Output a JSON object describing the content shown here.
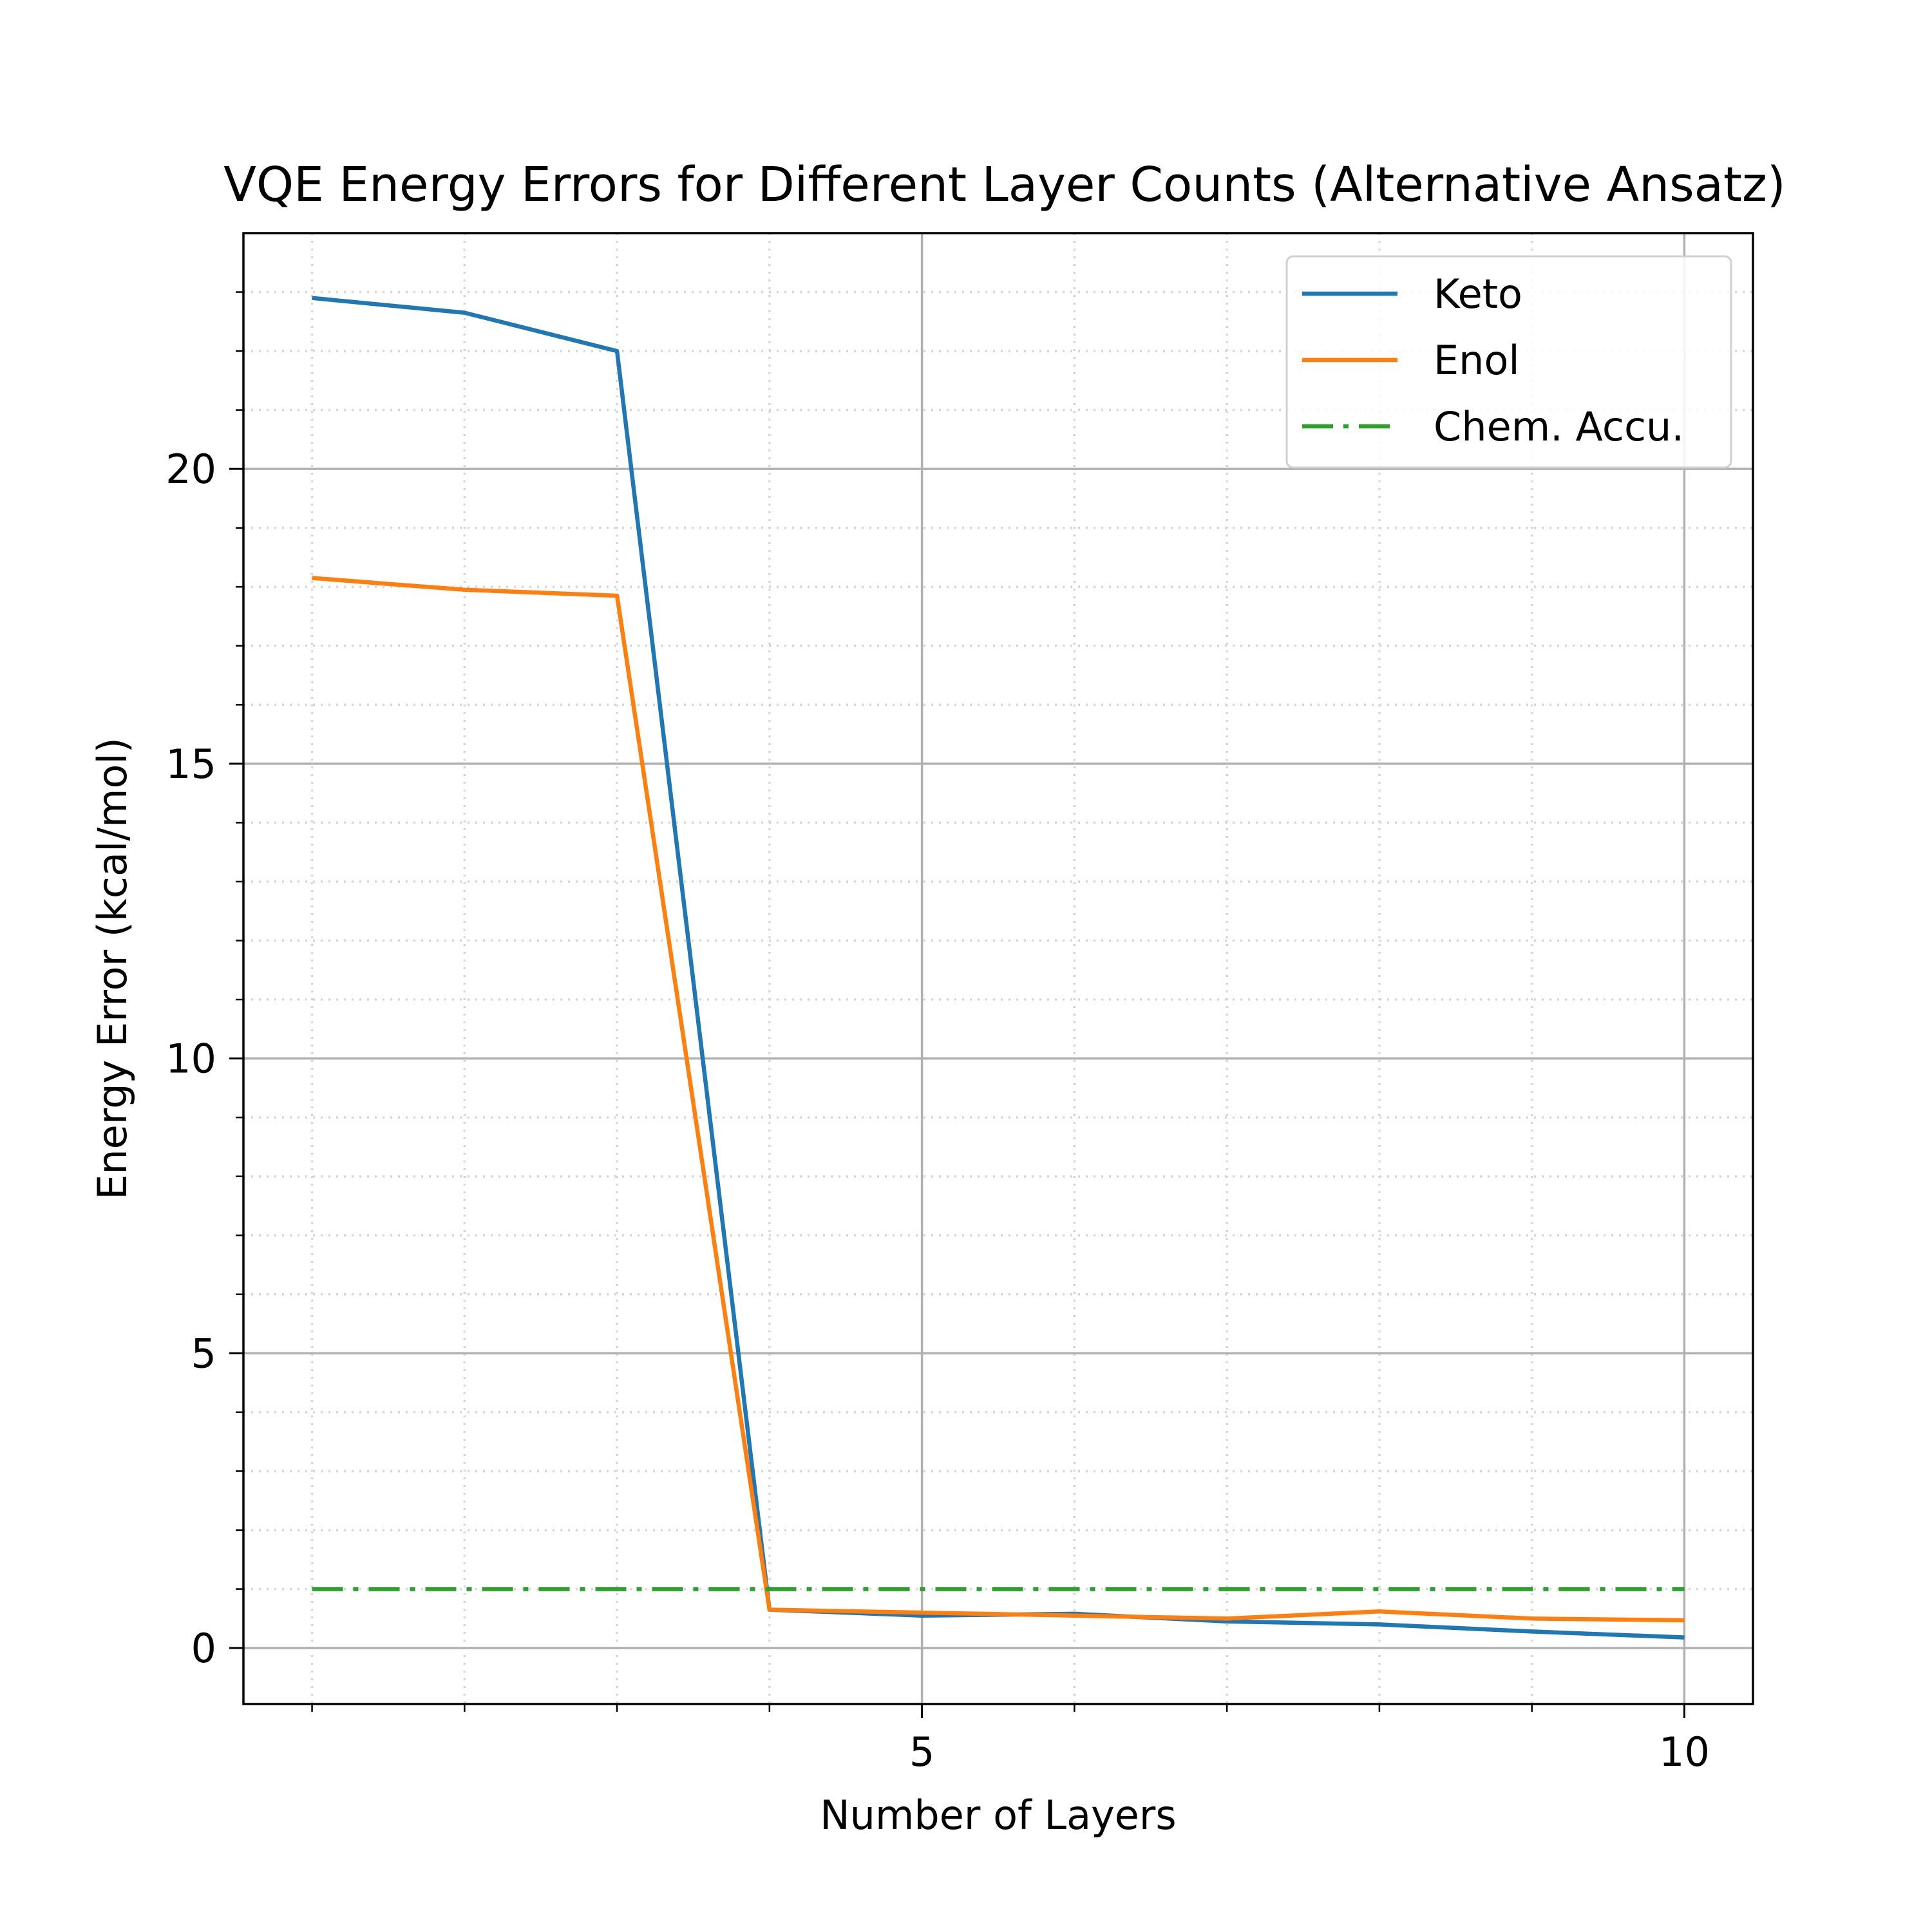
{
  "chart_data": {
    "type": "line",
    "title": "VQE Energy Errors for Different Layer Counts (Alternative Ansatz)",
    "xlabel": "Number of Layers",
    "ylabel": "Energy Error (kcal/mol)",
    "xlim": [
      0.55,
      10.45
    ],
    "ylim": [
      -0.95,
      24.0
    ],
    "x": [
      1,
      2,
      3,
      4,
      5,
      6,
      7,
      8,
      9,
      10
    ],
    "xticks_major": [
      5,
      10
    ],
    "xtick_labels": [
      "5",
      "10"
    ],
    "xticks_minor": [
      1,
      2,
      3,
      4,
      6,
      7,
      8,
      9
    ],
    "yticks_major": [
      0,
      5,
      10,
      15,
      20
    ],
    "ytick_labels": [
      "0",
      "5",
      "10",
      "15",
      "20"
    ],
    "yticks_minor": [
      1,
      2,
      3,
      4,
      6,
      7,
      8,
      9,
      11,
      12,
      13,
      14,
      16,
      17,
      18,
      19,
      21,
      22,
      23
    ],
    "grid": "major solid, minor dotted",
    "legend_position": "top-right",
    "series": [
      {
        "name": "Keto",
        "color": "#1f77b4",
        "style": "solid",
        "values": [
          22.9,
          22.65,
          22.0,
          0.65,
          0.55,
          0.58,
          0.45,
          0.4,
          0.28,
          0.18
        ]
      },
      {
        "name": "Enol",
        "color": "#ff7f0e",
        "style": "solid",
        "values": [
          18.15,
          17.95,
          17.85,
          0.65,
          0.6,
          0.55,
          0.5,
          0.62,
          0.5,
          0.47
        ]
      },
      {
        "name": "Chem. Accu.",
        "color": "#2ca02c",
        "style": "dashdot",
        "values": [
          1.0,
          1.0,
          1.0,
          1.0,
          1.0,
          1.0,
          1.0,
          1.0,
          1.0,
          1.0
        ]
      }
    ]
  }
}
